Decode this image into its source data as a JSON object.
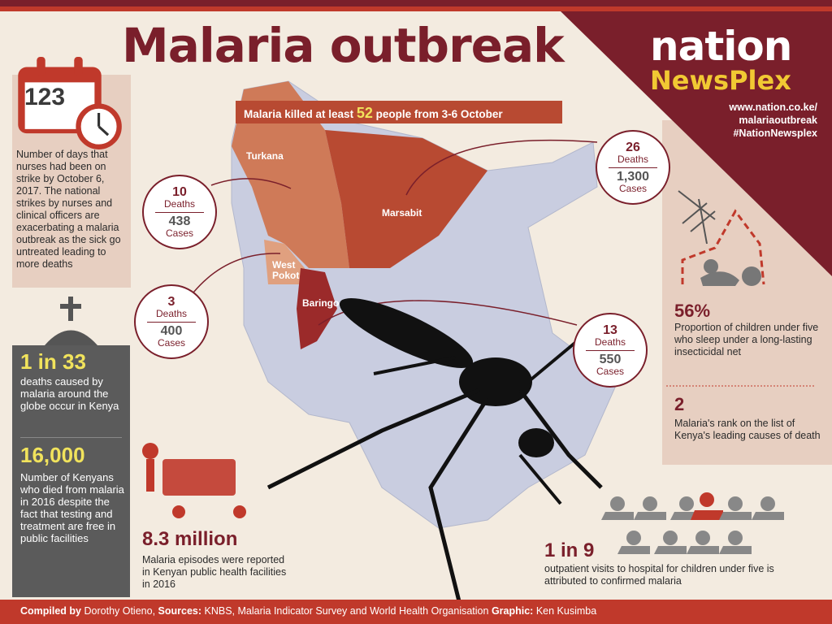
{
  "title": "Malaria outbreak",
  "brand": {
    "nation": "nation",
    "newsplex": "NewsPlex",
    "link1": "www.nation.co.ke/",
    "link2": "malariaoutbreak",
    "hashtag": "#NationNewsplex"
  },
  "banner": {
    "prefix": "Malaria killed at least",
    "number": "52",
    "suffix": "people from 3-6 October"
  },
  "strike": {
    "days": "123",
    "description": "Number of days that nurses had been on strike by October 6, 2017.  The national strikes by nurses and clinical officers are exacerbating a malaria outbreak as the sick go untreated leading to more deaths"
  },
  "global": {
    "ratio": "1 in 33",
    "description": "deaths caused by malaria around the globe occur in Kenya"
  },
  "kenya_deaths": {
    "value": "16,000",
    "description": "Number of Kenyans who died from malaria in 2016 despite the fact that testing and treatment are free in public facilities"
  },
  "episodes": {
    "value": "8.3 million",
    "description": "Malaria episodes were reported in Kenyan public health facilities in 2016"
  },
  "regions": [
    {
      "name": "Turkana",
      "deaths": "10",
      "cases": "438"
    },
    {
      "name": "Marsabit",
      "deaths": "26",
      "cases": "1,300"
    },
    {
      "name": "West Pokot",
      "deaths": "3",
      "cases": "400"
    },
    {
      "name": "Baringo",
      "deaths": "13",
      "cases": "550"
    }
  ],
  "labels": {
    "deaths": "Deaths",
    "cases": "Cases",
    "west": "West",
    "pokot": "Pokot"
  },
  "nets": {
    "value": "56%",
    "description": "Proportion of children under five who sleep under a long-lasting insecticidal net"
  },
  "rank": {
    "value": "2",
    "description": "Malaria's rank on the list of Kenya's leading causes of death"
  },
  "outpatient": {
    "value": "1 in 9",
    "description": "outpatient visits to hospital for children under five is attributed to confirmed malaria"
  },
  "footer": {
    "compiled_label": "Compiled by",
    "compiled": "Dorothy Otieno,",
    "sources_label": "Sources:",
    "sources": "KNBS, Malaria Indicator Survey and World Health Organisation",
    "graphic_label": "Graphic:",
    "graphic": "Ken Kusimba"
  },
  "colors": {
    "maroon": "#7a1f2b",
    "rust": "#b84a32",
    "yellow": "#f1e35c",
    "map": "#c9cde0"
  }
}
